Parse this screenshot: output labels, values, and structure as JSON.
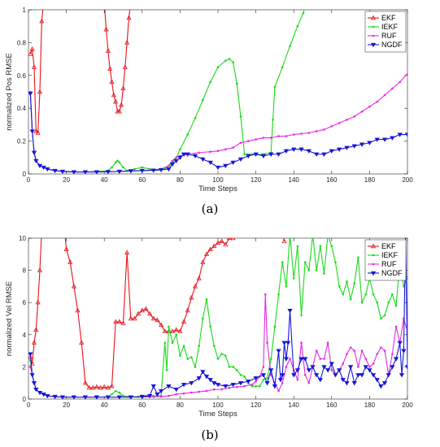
{
  "chart_data": [
    {
      "type": "line",
      "caption": "(a)",
      "xlabel": "Time Steps",
      "ylabel": "normalized Pos RMSE",
      "xlim": [
        0,
        200
      ],
      "ylim": [
        0,
        1
      ],
      "xticks": [
        0,
        20,
        40,
        60,
        80,
        100,
        120,
        140,
        160,
        180,
        200
      ],
      "yticks": [
        0,
        0.2,
        0.4,
        0.6,
        0.8,
        1
      ],
      "ytick_labels": [
        "0",
        "0.2",
        "0.4",
        "0.6",
        "0.8",
        "1"
      ],
      "legend": "top-right",
      "series": [
        {
          "name": "EKF",
          "color": "#e8141c",
          "marker": "triangle-up",
          "x": [
            1,
            2,
            3,
            4,
            5,
            6,
            7,
            8,
            40,
            41,
            42,
            43,
            44,
            45,
            46,
            47,
            48,
            49,
            50,
            51,
            52,
            53,
            54
          ],
          "y": [
            0.73,
            0.76,
            0.65,
            0.26,
            0.25,
            0.5,
            0.93,
            1.05,
            1.05,
            0.88,
            0.75,
            0.64,
            0.56,
            0.48,
            0.44,
            0.38,
            0.38,
            0.42,
            0.52,
            0.65,
            0.8,
            0.95,
            1.05
          ]
        },
        {
          "name": "IEKF",
          "color": "#1bd91b",
          "marker": "dot",
          "x": [
            1,
            2,
            3,
            4,
            6,
            8,
            10,
            14,
            18,
            24,
            30,
            38,
            42,
            44,
            46,
            47,
            48,
            50,
            52,
            56,
            60,
            64,
            68,
            72,
            74,
            75,
            76,
            78,
            80,
            84,
            88,
            92,
            96,
            100,
            104,
            106,
            108,
            110,
            112,
            114,
            118,
            124,
            128,
            129,
            130,
            134,
            138,
            142,
            145,
            147
          ],
          "y": [
            0.5,
            0.26,
            0.13,
            0.08,
            0.05,
            0.04,
            0.03,
            0.02,
            0.015,
            0.012,
            0.012,
            0.015,
            0.02,
            0.04,
            0.07,
            0.08,
            0.07,
            0.04,
            0.02,
            0.03,
            0.04,
            0.03,
            0.025,
            0.03,
            0.05,
            0.06,
            0.07,
            0.1,
            0.15,
            0.24,
            0.34,
            0.45,
            0.56,
            0.65,
            0.69,
            0.7,
            0.68,
            0.55,
            0.35,
            0.12,
            0.12,
            0.12,
            0.13,
            0.33,
            0.53,
            0.65,
            0.78,
            0.9,
            0.98,
            1.05
          ]
        },
        {
          "name": "RUF",
          "color": "#e52ae5",
          "marker": "dot",
          "x": [
            1,
            2,
            3,
            4,
            6,
            8,
            10,
            14,
            18,
            24,
            30,
            36,
            42,
            48,
            54,
            60,
            66,
            70,
            74,
            76,
            78,
            80,
            84,
            90,
            96,
            100,
            104,
            108,
            112,
            116,
            120,
            124,
            128,
            132,
            136,
            140,
            144,
            148,
            152,
            156,
            160,
            164,
            168,
            172,
            176,
            180,
            184,
            188,
            192,
            196,
            200
          ],
          "y": [
            0.5,
            0.26,
            0.13,
            0.08,
            0.05,
            0.04,
            0.03,
            0.02,
            0.015,
            0.012,
            0.012,
            0.012,
            0.013,
            0.015,
            0.018,
            0.02,
            0.025,
            0.03,
            0.05,
            0.08,
            0.1,
            0.11,
            0.12,
            0.13,
            0.135,
            0.14,
            0.15,
            0.16,
            0.19,
            0.2,
            0.21,
            0.22,
            0.22,
            0.23,
            0.23,
            0.24,
            0.245,
            0.25,
            0.26,
            0.27,
            0.29,
            0.31,
            0.33,
            0.35,
            0.38,
            0.41,
            0.44,
            0.48,
            0.52,
            0.56,
            0.61
          ]
        },
        {
          "name": "NGDF",
          "color": "#1717d6",
          "marker": "triangle-down",
          "x": [
            1,
            2,
            3,
            4,
            6,
            8,
            10,
            14,
            18,
            24,
            30,
            36,
            42,
            48,
            54,
            60,
            66,
            70,
            74,
            76,
            78,
            80,
            82,
            84,
            88,
            92,
            96,
            100,
            104,
            108,
            112,
            116,
            120,
            124,
            128,
            132,
            136,
            140,
            144,
            148,
            152,
            156,
            160,
            164,
            168,
            172,
            176,
            180,
            184,
            188,
            192,
            196,
            200
          ],
          "y": [
            0.49,
            0.26,
            0.13,
            0.08,
            0.05,
            0.04,
            0.03,
            0.02,
            0.015,
            0.012,
            0.012,
            0.012,
            0.013,
            0.015,
            0.018,
            0.02,
            0.022,
            0.025,
            0.03,
            0.06,
            0.08,
            0.1,
            0.12,
            0.12,
            0.11,
            0.09,
            0.07,
            0.04,
            0.05,
            0.07,
            0.09,
            0.11,
            0.12,
            0.11,
            0.12,
            0.12,
            0.14,
            0.15,
            0.15,
            0.14,
            0.12,
            0.12,
            0.14,
            0.15,
            0.16,
            0.17,
            0.18,
            0.19,
            0.21,
            0.21,
            0.22,
            0.24,
            0.24
          ]
        }
      ]
    },
    {
      "type": "line",
      "caption": "(b)",
      "xlabel": "Time Steps",
      "ylabel": "normalized Vel RMSE",
      "xlim": [
        0,
        200
      ],
      "ylim": [
        0,
        10
      ],
      "xticks": [
        0,
        20,
        40,
        60,
        80,
        100,
        120,
        140,
        160,
        180,
        200
      ],
      "yticks": [
        0,
        2,
        4,
        6,
        8,
        10
      ],
      "ytick_labels": [
        "0",
        "2",
        "4",
        "6",
        "8",
        "10"
      ],
      "legend": "top-right",
      "series": [
        {
          "name": "EKF",
          "color": "#e8141c",
          "marker": "triangle-up",
          "x": [
            1,
            2,
            3,
            4,
            5,
            6,
            7,
            8,
            19,
            20,
            22,
            24,
            26,
            28,
            30,
            32,
            34,
            36,
            38,
            40,
            42,
            44,
            46,
            48,
            50,
            52,
            54,
            56,
            58,
            60,
            62,
            64,
            66,
            68,
            70,
            72,
            74,
            76,
            78,
            80,
            82,
            84,
            86,
            88,
            90,
            92,
            94,
            96,
            98,
            100,
            102,
            104,
            106,
            108,
            110,
            134,
            135
          ],
          "y": [
            2.6,
            2.2,
            3.5,
            4.3,
            6.0,
            8.0,
            10.5,
            11.0,
            10.5,
            9.3,
            8.5,
            7.0,
            5.5,
            3.5,
            1.0,
            0.7,
            0.7,
            0.75,
            0.7,
            0.75,
            0.7,
            0.8,
            4.8,
            4.8,
            4.7,
            9.1,
            5.0,
            5.0,
            5.3,
            5.5,
            5.6,
            5.3,
            5.0,
            4.9,
            4.6,
            4.2,
            4.2,
            4.2,
            4.3,
            4.2,
            4.8,
            5.5,
            6.3,
            7.0,
            7.5,
            8.5,
            9.0,
            9.3,
            9.5,
            9.7,
            9.8,
            9.6,
            10.0,
            10.0,
            10.2,
            10.5,
            9.8
          ]
        },
        {
          "name": "IEKF",
          "color": "#1bd91b",
          "marker": "dot",
          "x": [
            1,
            2,
            3,
            4,
            6,
            8,
            10,
            14,
            18,
            24,
            30,
            36,
            42,
            44,
            46,
            48,
            50,
            54,
            58,
            62,
            66,
            70,
            72,
            73,
            74,
            76,
            78,
            80,
            82,
            84,
            86,
            88,
            90,
            92,
            94,
            96,
            98,
            100,
            102,
            104,
            106,
            108,
            110,
            112,
            114,
            116,
            118,
            120,
            122,
            124,
            126,
            128,
            130,
            132,
            134,
            136,
            138,
            140,
            142,
            144,
            146,
            148,
            150,
            152,
            154,
            156,
            158,
            160,
            162,
            164,
            166,
            168,
            170,
            172,
            174,
            176,
            178,
            180,
            182,
            184,
            186,
            188,
            190,
            192,
            194,
            196,
            198,
            200
          ],
          "y": [
            2.4,
            1.5,
            1.0,
            0.6,
            0.4,
            0.3,
            0.2,
            0.15,
            0.12,
            0.12,
            0.12,
            0.12,
            0.13,
            0.3,
            0.5,
            0.4,
            0.2,
            0.15,
            0.15,
            0.2,
            0.2,
            0.2,
            3.5,
            1.8,
            4.5,
            3.5,
            4.0,
            2.7,
            3.3,
            2.5,
            2.6,
            2.0,
            3.3,
            5.0,
            6.2,
            4.5,
            3.3,
            2.5,
            2.8,
            2.7,
            2.0,
            2.0,
            1.8,
            1.5,
            1.4,
            1.0,
            0.8,
            0.8,
            0.8,
            1.2,
            1.3,
            2.5,
            4.5,
            6.5,
            8.5,
            7.0,
            10.2,
            7.5,
            9.5,
            5.2,
            8.5,
            8.0,
            10.2,
            8.0,
            9.5,
            7.8,
            10.2,
            9.5,
            8.5,
            7.0,
            6.5,
            7.3,
            6.2,
            7.2,
            8.8,
            6.0,
            6.5,
            7.5,
            6.5,
            6.0,
            5.0,
            5.2,
            6.0,
            6.5,
            5.8,
            8.5,
            7.0,
            7.6
          ]
        },
        {
          "name": "RUF",
          "color": "#e52ae5",
          "marker": "dot",
          "x": [
            1,
            2,
            3,
            4,
            6,
            8,
            10,
            14,
            18,
            24,
            30,
            36,
            42,
            48,
            54,
            60,
            66,
            70,
            74,
            78,
            82,
            86,
            90,
            94,
            98,
            102,
            106,
            110,
            114,
            118,
            120,
            122,
            124,
            125,
            126,
            128,
            130,
            132,
            134,
            136,
            138,
            140,
            142,
            144,
            146,
            148,
            150,
            152,
            154,
            156,
            158,
            160,
            162,
            164,
            166,
            168,
            170,
            172,
            174,
            176,
            178,
            180,
            182,
            184,
            186,
            188,
            190,
            192,
            194,
            196,
            198,
            200
          ],
          "y": [
            2.0,
            1.5,
            1.0,
            0.6,
            0.4,
            0.3,
            0.2,
            0.15,
            0.12,
            0.12,
            0.12,
            0.12,
            0.12,
            0.12,
            0.12,
            0.13,
            0.14,
            0.15,
            0.2,
            0.3,
            0.35,
            0.4,
            0.45,
            0.5,
            0.6,
            0.6,
            0.7,
            0.75,
            0.8,
            0.9,
            1.1,
            1.4,
            2.0,
            6.5,
            3.5,
            1.5,
            1.0,
            0.5,
            1.0,
            2.0,
            2.5,
            1.8,
            1.2,
            3.5,
            1.5,
            1.0,
            2.0,
            3.0,
            2.5,
            2.5,
            3.5,
            1.8,
            1.5,
            1.8,
            2.2,
            2.8,
            3.2,
            3.0,
            2.0,
            3.0,
            2.5,
            2.0,
            2.2,
            2.8,
            3.2,
            3.0,
            1.5,
            2.8,
            4.5,
            3.5,
            5.0,
            4.2
          ]
        },
        {
          "name": "NGDF",
          "color": "#1717d6",
          "marker": "triangle-down",
          "x": [
            1,
            2,
            3,
            4,
            6,
            8,
            10,
            14,
            18,
            24,
            30,
            36,
            42,
            48,
            54,
            60,
            64,
            66,
            68,
            70,
            74,
            78,
            82,
            86,
            90,
            92,
            94,
            96,
            98,
            100,
            104,
            108,
            112,
            116,
            120,
            124,
            126,
            128,
            130,
            132,
            133,
            134,
            135,
            136,
            137,
            138,
            140,
            142,
            144,
            146,
            148,
            150,
            152,
            154,
            156,
            158,
            160,
            162,
            164,
            166,
            168,
            170,
            172,
            174,
            176,
            178,
            180,
            182,
            184,
            186,
            188,
            190,
            192,
            194,
            196,
            197,
            198,
            199,
            200
          ],
          "y": [
            2.8,
            1.5,
            1.0,
            0.6,
            0.4,
            0.3,
            0.2,
            0.15,
            0.12,
            0.12,
            0.12,
            0.12,
            0.12,
            0.12,
            0.12,
            0.15,
            0.2,
            0.8,
            0.3,
            0.5,
            0.8,
            0.6,
            0.9,
            1.0,
            1.3,
            1.7,
            1.4,
            1.2,
            1.0,
            0.9,
            0.8,
            0.9,
            1.0,
            1.1,
            1.3,
            1.5,
            1.0,
            1.8,
            0.8,
            3.0,
            1.2,
            1.5,
            3.5,
            2.5,
            3.5,
            5.5,
            1.5,
            1.8,
            2.5,
            2.5,
            1.8,
            2.0,
            1.5,
            1.2,
            2.0,
            1.8,
            2.2,
            1.5,
            1.8,
            1.2,
            1.0,
            2.0,
            1.0,
            1.5,
            1.5,
            2.0,
            1.8,
            1.5,
            1.2,
            0.8,
            1.0,
            1.5,
            2.0,
            2.5,
            3.5,
            1.5,
            3.0,
            10.2,
            2.0
          ]
        }
      ]
    }
  ]
}
